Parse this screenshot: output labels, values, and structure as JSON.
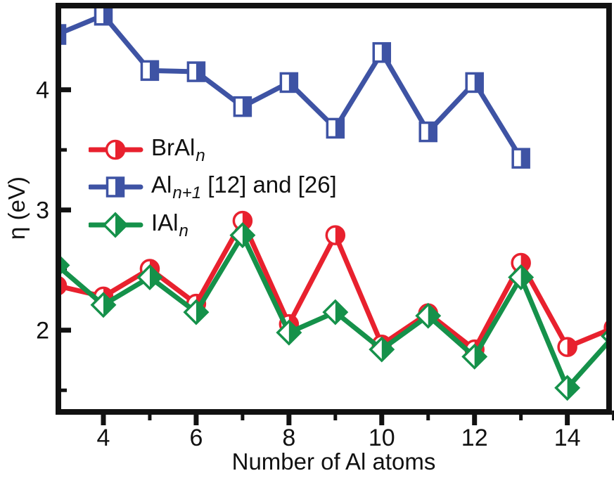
{
  "figure": {
    "background": "#ffffff"
  },
  "chart_data": {
    "type": "line",
    "title": "",
    "xlabel": "Number of Al atoms",
    "ylabel": "η (eV)",
    "x_range": [
      3.03,
      14.9
    ],
    "y_range": [
      1.32,
      4.7
    ],
    "x_ticks": [
      4,
      6,
      8,
      10,
      12,
      14
    ],
    "x_minor_ticks": [
      5,
      7,
      9,
      11,
      13,
      15
    ],
    "y_ticks": [
      2,
      3,
      4
    ],
    "y_minor_ticks": [
      1.5,
      2.5,
      3.5
    ],
    "grid": false,
    "legend_position": "upper-left-inside",
    "axis_color": "#111111",
    "series": [
      {
        "name": "BrAln",
        "marker": "half-circle",
        "color": "#e8212e",
        "x": [
          3,
          4,
          5,
          6,
          7,
          8,
          9,
          10,
          11,
          12,
          13,
          14,
          15
        ],
        "y": [
          2.37,
          2.28,
          2.51,
          2.22,
          2.91,
          2.05,
          2.79,
          1.88,
          2.14,
          1.84,
          2.56,
          1.86,
          2.02
        ]
      },
      {
        "name": "Aln+1 [12] and [26]",
        "marker": "half-square",
        "color": "#3e53a4",
        "x": [
          3,
          4,
          5,
          6,
          7,
          8,
          9,
          10,
          11,
          12,
          13
        ],
        "y": [
          4.46,
          4.62,
          4.16,
          4.15,
          3.86,
          4.06,
          3.68,
          4.31,
          3.65,
          4.06,
          3.43
        ]
      },
      {
        "name": "IAln",
        "marker": "half-diamond",
        "color": "#15914a",
        "x": [
          3,
          4,
          5,
          6,
          7,
          8,
          9,
          10,
          11,
          12,
          13,
          14,
          15
        ],
        "y": [
          2.54,
          2.21,
          2.44,
          2.15,
          2.79,
          1.98,
          2.15,
          1.84,
          2.12,
          1.78,
          2.44,
          1.52,
          1.95
        ]
      }
    ]
  },
  "legend": {
    "items": [
      {
        "marker": "half-circle",
        "color": "#e8212e",
        "label_main": "BrAl",
        "label_sub": "n",
        "label_rest": ""
      },
      {
        "marker": "half-square",
        "color": "#3e53a4",
        "label_main": "Al",
        "label_sub": "n+1",
        "label_rest": " [12] and [26]"
      },
      {
        "marker": "half-diamond",
        "color": "#15914a",
        "label_main": "IAl",
        "label_sub": "n",
        "label_rest": ""
      }
    ]
  }
}
